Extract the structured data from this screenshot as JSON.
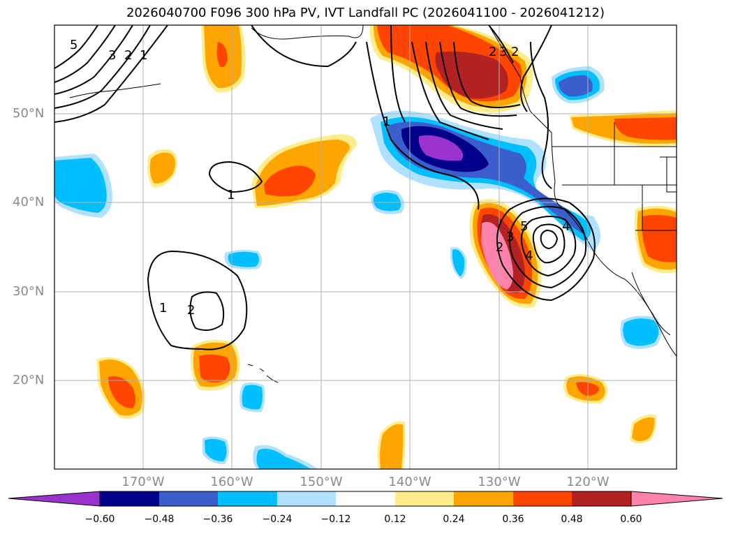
{
  "title": "2026040700 F096 300 hPa PV, IVT Landfall PC (2026041100 - 2026041212)",
  "map": {
    "projection": "equirectangular",
    "lon_range": [
      -180,
      -110
    ],
    "lat_range": [
      10,
      60
    ],
    "lat_labels": [
      "50°N",
      "40°N",
      "30°N",
      "20°N"
    ],
    "lon_labels": [
      "170°W",
      "160°W",
      "150°W",
      "140°W",
      "130°W",
      "120°W"
    ],
    "grid": true,
    "contour_labels": [
      "5",
      "3",
      "2",
      "1",
      "1",
      "1",
      "2",
      "1",
      "2",
      "3",
      "5",
      "4",
      "2",
      "3",
      "4",
      "2"
    ]
  },
  "colorbar": {
    "tick_labels": [
      "−0.60",
      "−0.48",
      "−0.36",
      "−0.24",
      "−0.12",
      "0.12",
      "0.24",
      "0.36",
      "0.48",
      "0.60"
    ],
    "colors": [
      "#9a32cd",
      "#00008b",
      "#3a5fcd",
      "#00bfff",
      "#b0e2ff",
      "#ffffff",
      "#ffec8b",
      "#ffa500",
      "#ff4500",
      "#b22222",
      "#ff82ab"
    ],
    "extend": "both"
  }
}
